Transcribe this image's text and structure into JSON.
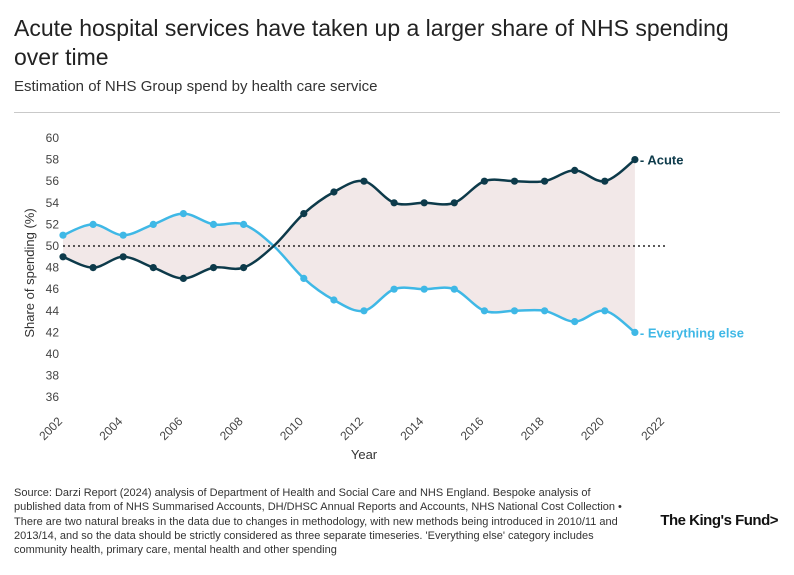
{
  "header": {
    "title": "Acute hospital services have taken up a larger share of NHS spending over time",
    "subtitle": "Estimation of NHS Group spend by health care service"
  },
  "footer": {
    "source": "Source: Darzi Report (2024) analysis of Department of Health and Social Care and NHS England. Bespoke analysis of published data from of NHS Summarised Accounts, DH/DHSC Annual Reports and Accounts, NHS National Cost Collection • There are two natural breaks in the data due to changes in methodology, with new methods being introduced in 2010/11 and 2013/14, and so the data should be strictly considered as three separate timeseries. 'Everything else' category includes community health, primary care, mental health and other spending",
    "logo": "The King's Fund>"
  },
  "chart_data": {
    "type": "line",
    "title": "Acute hospital services have taken up a larger share of NHS spending over time",
    "xlabel": "Year",
    "ylabel": "Share of spending (%)",
    "xlim": [
      2002,
      2022
    ],
    "ylim": [
      35,
      60
    ],
    "x_ticks": [
      2002,
      2004,
      2006,
      2008,
      2010,
      2012,
      2014,
      2016,
      2018,
      2020,
      2022
    ],
    "y_ticks": [
      36,
      38,
      40,
      42,
      44,
      46,
      48,
      50,
      52,
      54,
      56,
      58,
      60
    ],
    "reference_line": 50,
    "x": [
      2002,
      2003,
      2004,
      2005,
      2006,
      2007,
      2008,
      2010,
      2011,
      2012,
      2013,
      2014,
      2015,
      2016,
      2017,
      2018,
      2019,
      2020,
      2021
    ],
    "series": [
      {
        "name": "Acute",
        "color": "#0d3a4a",
        "values": [
          49,
          48,
          49,
          48,
          47,
          48,
          48,
          53,
          55,
          56,
          54,
          54,
          54,
          56,
          56,
          56,
          57,
          56,
          58
        ]
      },
      {
        "name": "Everything else",
        "color": "#3fb8e6",
        "values": [
          51,
          52,
          51,
          52,
          53,
          52,
          52,
          47,
          45,
          44,
          46,
          46,
          46,
          44,
          44,
          44,
          43,
          44,
          42
        ]
      }
    ],
    "shading_color": "#f2e8e8"
  }
}
